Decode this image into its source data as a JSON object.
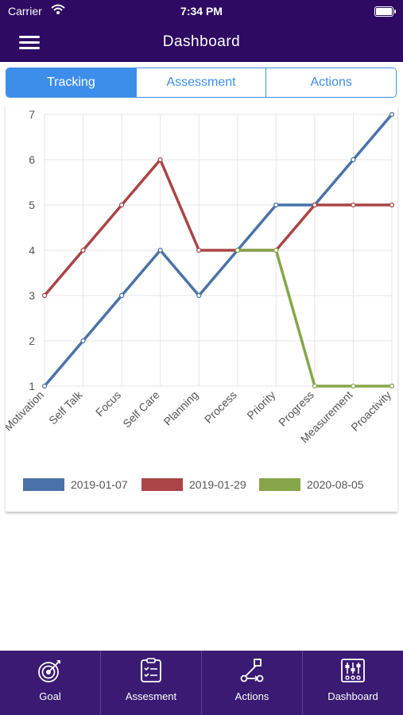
{
  "status_bar": {
    "carrier": "Carrier",
    "time": "7:34 PM"
  },
  "header": {
    "title": "Dashboard",
    "menu_icon": "hamburger-menu-icon"
  },
  "tabs": [
    {
      "label": "Tracking",
      "active": true
    },
    {
      "label": "Assessment",
      "active": false
    },
    {
      "label": "Actions",
      "active": false
    }
  ],
  "chart_data": {
    "type": "line",
    "categories": [
      "Motivation",
      "Self Talk",
      "Focus",
      "Self Care",
      "Planning",
      "Process",
      "Priority",
      "Progress",
      "Measurement",
      "Proactivity"
    ],
    "ylim": [
      1,
      7
    ],
    "yticks": [
      "1",
      "2",
      "3",
      "4",
      "5",
      "6",
      "7"
    ],
    "grid": true,
    "legend_position": "bottom",
    "series": [
      {
        "name": "2019-01-07",
        "color": "#4a72a8",
        "values": [
          1,
          2,
          3,
          4,
          3,
          4,
          5,
          5,
          6,
          7
        ]
      },
      {
        "name": "2019-01-29",
        "color": "#aa4446",
        "values": [
          3,
          4,
          5,
          6,
          4,
          4,
          4,
          5,
          5,
          5
        ]
      },
      {
        "name": "2020-08-05",
        "color": "#87a64a",
        "values": [
          null,
          null,
          null,
          null,
          null,
          4,
          4,
          1,
          1,
          1
        ]
      }
    ]
  },
  "bottom_nav": [
    {
      "label": "Goal",
      "icon": "target-icon"
    },
    {
      "label": "Assesment",
      "icon": "checklist-icon"
    },
    {
      "label": "Actions",
      "icon": "workflow-icon"
    },
    {
      "label": "Dashboard",
      "icon": "sliders-icon"
    }
  ]
}
